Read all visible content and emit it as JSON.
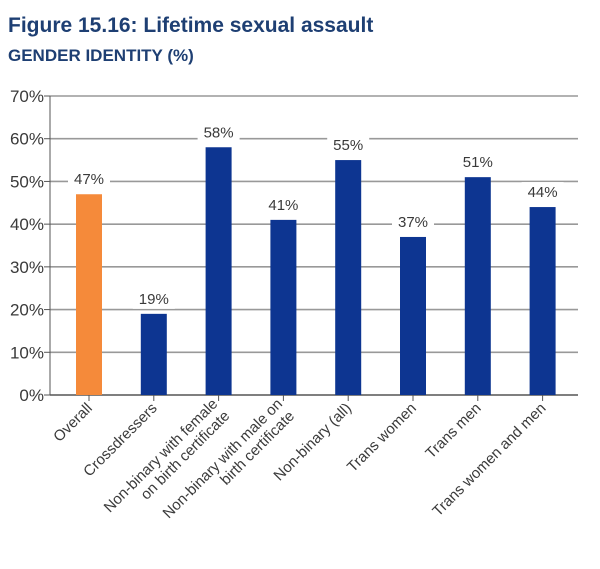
{
  "title": "Figure 15.16: Lifetime sexual assault",
  "subtitle": "GENDER IDENTITY (%)",
  "chart_data": {
    "type": "bar",
    "title": "Figure 15.16: Lifetime sexual assault",
    "subtitle": "GENDER IDENTITY (%)",
    "categories": [
      [
        "Overall"
      ],
      [
        "Crossdressers"
      ],
      [
        "Non-binary with female",
        "on birth certificate"
      ],
      [
        "Non-binary with male on",
        "birth certificate"
      ],
      [
        "Non-binary (all)"
      ],
      [
        "Trans women"
      ],
      [
        "Trans men"
      ],
      [
        "Trans women and men"
      ]
    ],
    "values": [
      47,
      19,
      58,
      41,
      55,
      37,
      51,
      44
    ],
    "data_labels": [
      "47%",
      "19%",
      "58%",
      "41%",
      "55%",
      "37%",
      "51%",
      "44%"
    ],
    "bar_colors": [
      "#f58a3a",
      "#0d3591",
      "#0d3591",
      "#0d3591",
      "#0d3591",
      "#0d3591",
      "#0d3591",
      "#0d3591"
    ],
    "yticks": [
      0,
      10,
      20,
      30,
      40,
      50,
      60,
      70
    ],
    "ytick_labels": [
      "0%",
      "10%",
      "20%",
      "30%",
      "40%",
      "50%",
      "60%",
      "70%"
    ],
    "ylim": [
      0,
      70
    ],
    "grid": true,
    "xlabel": "",
    "ylabel": ""
  },
  "colors": {
    "title": "#1e3f73",
    "grid": "#999999",
    "axis": "#555555",
    "text": "#3a3a3a"
  }
}
